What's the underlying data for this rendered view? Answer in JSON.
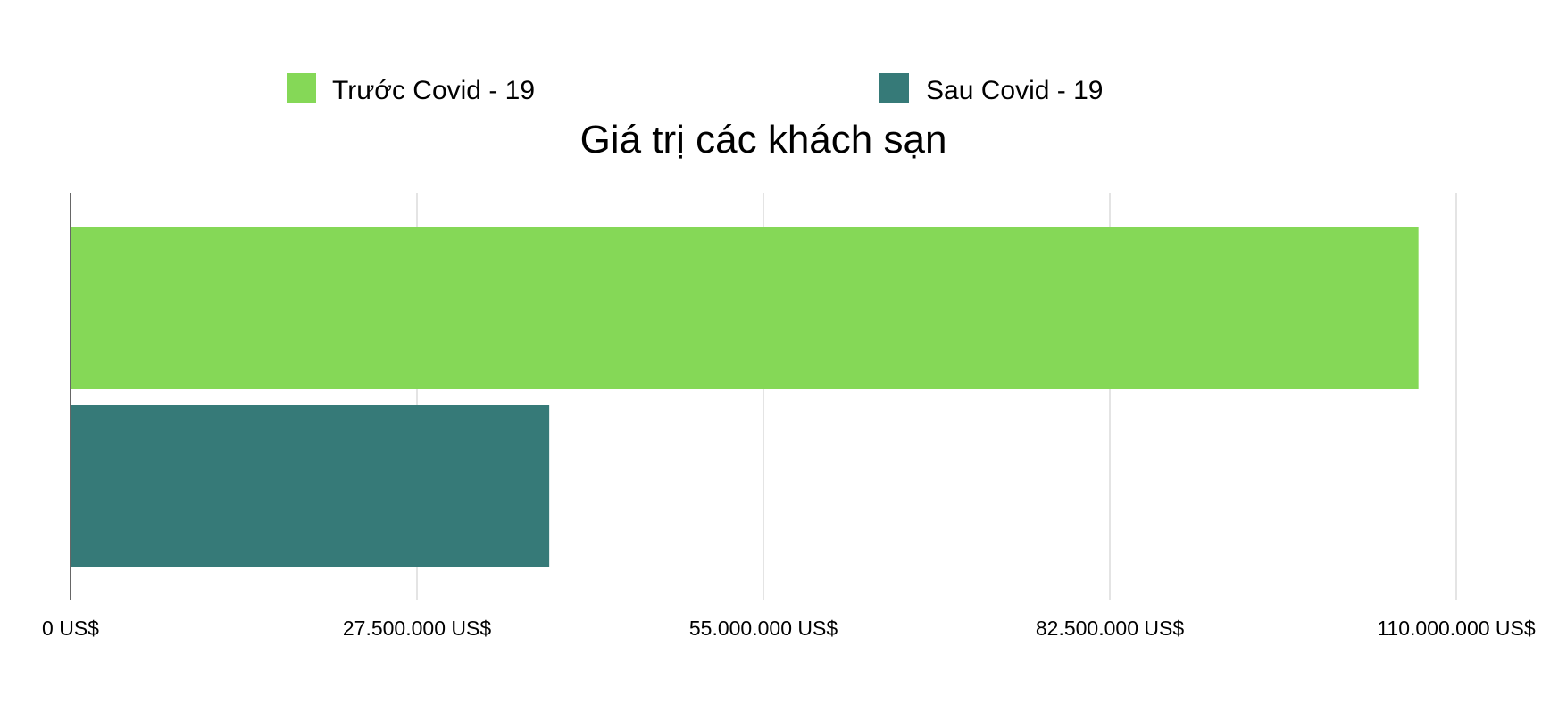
{
  "chart_data": {
    "type": "bar",
    "orientation": "horizontal",
    "title": "Giá trị các khách sạn",
    "xlabel": "",
    "ylabel": "",
    "xlim": [
      0,
      110000000
    ],
    "x_ticks": [
      0,
      27500000,
      55000000,
      82500000,
      110000000
    ],
    "x_tick_labels": [
      "0 US$",
      "27.500.000 US$",
      "55.000.000 US$",
      "82.500.000 US$",
      "110.000.000 US$"
    ],
    "grid": "vertical",
    "legend_position": "top",
    "series": [
      {
        "name": "Trước Covid - 19",
        "color": "#85d857",
        "values": [
          107000000
        ]
      },
      {
        "name": "Sau Covid - 19",
        "color": "#367a78",
        "values": [
          38000000
        ]
      }
    ]
  }
}
